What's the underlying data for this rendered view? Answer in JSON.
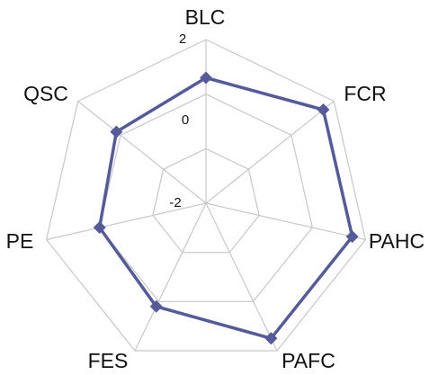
{
  "chart_data": {
    "type": "radar",
    "axes": [
      "BLC",
      "FCR",
      "PAHC",
      "PAFC",
      "FES",
      "PE",
      "QSC"
    ],
    "ticks": [
      "2",
      "0",
      "-2"
    ],
    "range": [
      -4,
      2
    ],
    "grid_levels": [
      -4,
      -2,
      0,
      2
    ],
    "grid": true,
    "series": [
      {
        "values": [
          0.6,
          1.5,
          1.5,
          1.5,
          0.2,
          0.0,
          0.2
        ]
      }
    ]
  },
  "colors": {
    "series": "#555a9a",
    "grid": "#c8c8c8",
    "text": "#111111"
  }
}
